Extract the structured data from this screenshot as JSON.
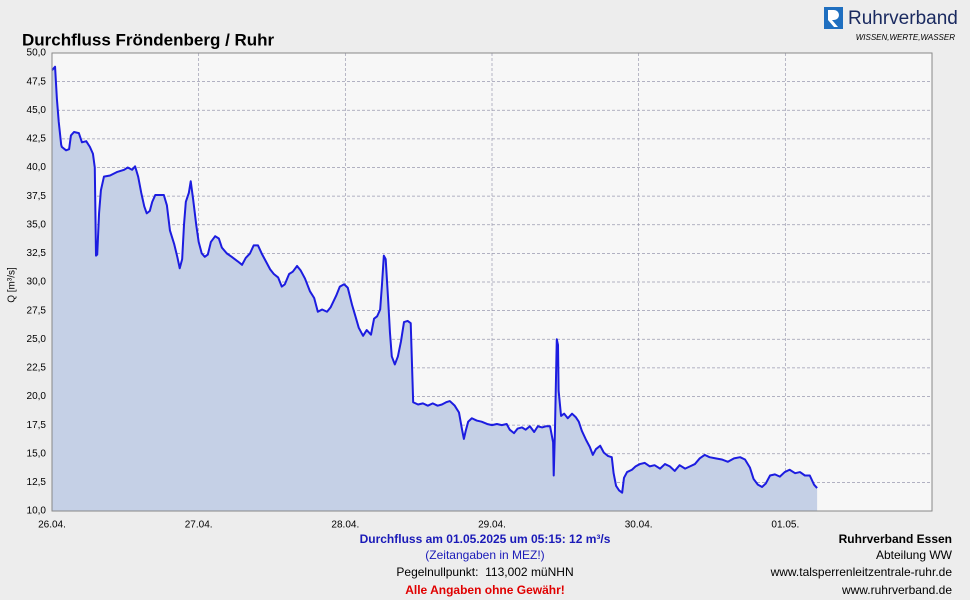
{
  "chart_data": {
    "type": "area",
    "title": "Durchfluss Fröndenberg / Ruhr",
    "brand": "Ruhrverband",
    "slogan": "WISSEN,WERTE,WASSER",
    "y_label": "Q [m³/s]",
    "color": "#1c1ce0",
    "fill": "#c5d0e6",
    "grid": true,
    "xlim": [
      0,
      144
    ],
    "xticks": [
      {
        "value": 0,
        "label": "26.04."
      },
      {
        "value": 24,
        "label": "27.04."
      },
      {
        "value": 48,
        "label": "28.04."
      },
      {
        "value": 72,
        "label": "29.04."
      },
      {
        "value": 96,
        "label": "30.04."
      },
      {
        "value": 120,
        "label": "01.05."
      }
    ],
    "ylim": [
      10,
      50
    ],
    "yticks": [
      {
        "value": 10,
        "label": "10,0"
      },
      {
        "value": 12.5,
        "label": "12,5"
      },
      {
        "value": 15,
        "label": "15,0"
      },
      {
        "value": 17.5,
        "label": "17,5"
      },
      {
        "value": 20,
        "label": "20,0"
      },
      {
        "value": 22.5,
        "label": "22,5"
      },
      {
        "value": 25,
        "label": "25,0"
      },
      {
        "value": 27.5,
        "label": "27,5"
      },
      {
        "value": 30,
        "label": "30,0"
      },
      {
        "value": 32.5,
        "label": "32,5"
      },
      {
        "value": 35,
        "label": "35,0"
      },
      {
        "value": 37.5,
        "label": "37,5"
      },
      {
        "value": 40,
        "label": "40,0"
      },
      {
        "value": 42.5,
        "label": "42,5"
      },
      {
        "value": 45,
        "label": "45,0"
      },
      {
        "value": 47.5,
        "label": "47,5"
      },
      {
        "value": 50,
        "label": "50,0"
      }
    ],
    "x": [
      0,
      0.5,
      0.8,
      1.1,
      1.5,
      1.6,
      2.3,
      2.8,
      3.1,
      3.6,
      4.4,
      4.9,
      5.6,
      6.2,
      6.7,
      7.0,
      7.2,
      7.4,
      7.7,
      8.0,
      8.5,
      9.5,
      10.6,
      11.8,
      12.4,
      13.1,
      13.6,
      14.1,
      14.6,
      15.1,
      15.5,
      16.0,
      16.4,
      16.9,
      17.7,
      18.3,
      18.8,
      19.3,
      20.0,
      20.5,
      20.9,
      21.3,
      21.6,
      21.9,
      22.4,
      22.7,
      23.1,
      23.6,
      24.0,
      24.5,
      25.0,
      25.5,
      26.0,
      26.7,
      27.3,
      27.8,
      28.6,
      29.4,
      30.4,
      31.1,
      31.7,
      32.4,
      33.0,
      33.7,
      34.4,
      35.0,
      35.7,
      36.3,
      37.0,
      37.6,
      38.1,
      38.8,
      39.4,
      40.1,
      40.7,
      41.4,
      42.2,
      42.9,
      43.5,
      44.2,
      45.0,
      45.6,
      46.5,
      47.1,
      47.8,
      48.4,
      49.1,
      49.6,
      50.2,
      50.9,
      51.5,
      52.2,
      52.7,
      53.2,
      53.7,
      54.0,
      54.3,
      54.6,
      55.0,
      55.3,
      55.6,
      56.1,
      56.6,
      57.1,
      57.6,
      58.2,
      58.7,
      59.1,
      59.9,
      60.7,
      61.5,
      62.3,
      63.1,
      63.8,
      64.5,
      65.1,
      65.9,
      66.6,
      67.1,
      67.4,
      67.7,
      68.1,
      68.7,
      69.5,
      70.3,
      71.2,
      72.0,
      72.8,
      73.6,
      74.4,
      74.9,
      75.6,
      76.2,
      76.9,
      77.5,
      78.2,
      78.9,
      79.5,
      80.2,
      80.8,
      81.5,
      82.0,
      82.1,
      82.3,
      82.6,
      82.8,
      82.9,
      83.3,
      83.8,
      84.4,
      85.1,
      85.7,
      86.2,
      86.7,
      87.4,
      88.0,
      88.5,
      89.0,
      89.7,
      90.3,
      91.0,
      91.6,
      91.9,
      92.3,
      92.8,
      93.3,
      93.6,
      94.1,
      94.9,
      95.5,
      96.2,
      97.0,
      97.8,
      98.6,
      99.5,
      100.3,
      101.1,
      101.9,
      102.7,
      103.6,
      104.4,
      105.2,
      106.0,
      106.8,
      107.6,
      108.6,
      109.6,
      110.6,
      111.6,
      112.6,
      113.4,
      114.2,
      114.8,
      115.5,
      116.2,
      116.8,
      117.5,
      118.3,
      119.1,
      119.9,
      120.7,
      121.6,
      122.4,
      123.2,
      124.0,
      124.7,
      125.2
    ],
    "values": [
      48.5,
      48.8,
      46.0,
      44.0,
      42.0,
      41.8,
      41.5,
      41.6,
      42.8,
      43.1,
      43.0,
      42.2,
      42.3,
      41.8,
      41.2,
      40.0,
      32.3,
      32.4,
      36.0,
      38.0,
      39.2,
      39.3,
      39.6,
      39.8,
      40.0,
      39.8,
      40.1,
      39.2,
      37.8,
      36.6,
      36.0,
      36.2,
      37.0,
      37.6,
      37.6,
      37.6,
      36.7,
      34.5,
      33.3,
      32.2,
      31.2,
      32.0,
      35.0,
      37.0,
      37.8,
      38.8,
      37.2,
      35.0,
      33.5,
      32.5,
      32.2,
      32.4,
      33.5,
      34.0,
      33.8,
      33.0,
      32.5,
      32.2,
      31.8,
      31.5,
      32.1,
      32.5,
      33.2,
      33.2,
      32.4,
      31.8,
      31.1,
      30.7,
      30.4,
      29.6,
      29.8,
      30.7,
      30.9,
      31.4,
      31.0,
      30.3,
      29.2,
      28.6,
      27.4,
      27.6,
      27.4,
      27.8,
      28.8,
      29.6,
      29.8,
      29.5,
      28.0,
      27.1,
      26.0,
      25.3,
      25.8,
      25.4,
      26.8,
      27.0,
      27.6,
      29.8,
      32.3,
      32.0,
      28.5,
      25.6,
      23.5,
      22.8,
      23.5,
      24.8,
      26.5,
      26.6,
      26.4,
      19.5,
      19.3,
      19.4,
      19.2,
      19.4,
      19.2,
      19.3,
      19.5,
      19.6,
      19.2,
      18.6,
      17.1,
      16.3,
      17.0,
      17.8,
      18.1,
      17.9,
      17.8,
      17.6,
      17.5,
      17.6,
      17.5,
      17.6,
      17.1,
      16.8,
      17.2,
      17.3,
      17.1,
      17.4,
      16.9,
      17.4,
      17.3,
      17.4,
      17.4,
      16.0,
      13.1,
      17.0,
      25.0,
      24.5,
      20.5,
      18.3,
      18.5,
      18.1,
      18.5,
      18.2,
      17.8,
      17.0,
      16.2,
      15.6,
      14.9,
      15.4,
      15.7,
      15.1,
      14.8,
      14.7,
      13.3,
      12.2,
      11.8,
      11.6,
      12.9,
      13.4,
      13.6,
      13.9,
      14.1,
      14.2,
      13.9,
      14.0,
      13.7,
      14.1,
      13.9,
      13.5,
      14.0,
      13.7,
      13.9,
      14.1,
      14.6,
      14.9,
      14.7,
      14.6,
      14.5,
      14.3,
      14.6,
      14.7,
      14.5,
      13.8,
      12.8,
      12.3,
      12.1,
      12.4,
      13.1,
      13.2,
      13.0,
      13.4,
      13.6,
      13.3,
      13.4,
      13.1,
      13.1,
      12.3,
      12.0
    ],
    "footer": {
      "current": "Durchfluss am 01.05.2025 um 05:15: 12 m³/s",
      "timezone": "(Zeitangaben in MEZ!)",
      "gauge_zero": "Pegelnullpunkt:  113,002 müNHN",
      "disclaimer": "Alle Angaben ohne Gewähr!",
      "org": "Ruhrverband Essen",
      "department": "Abteilung WW",
      "url1": "www.talsperrenleitzentrale-ruhr.de",
      "url2": "www.ruhrverband.de"
    }
  }
}
